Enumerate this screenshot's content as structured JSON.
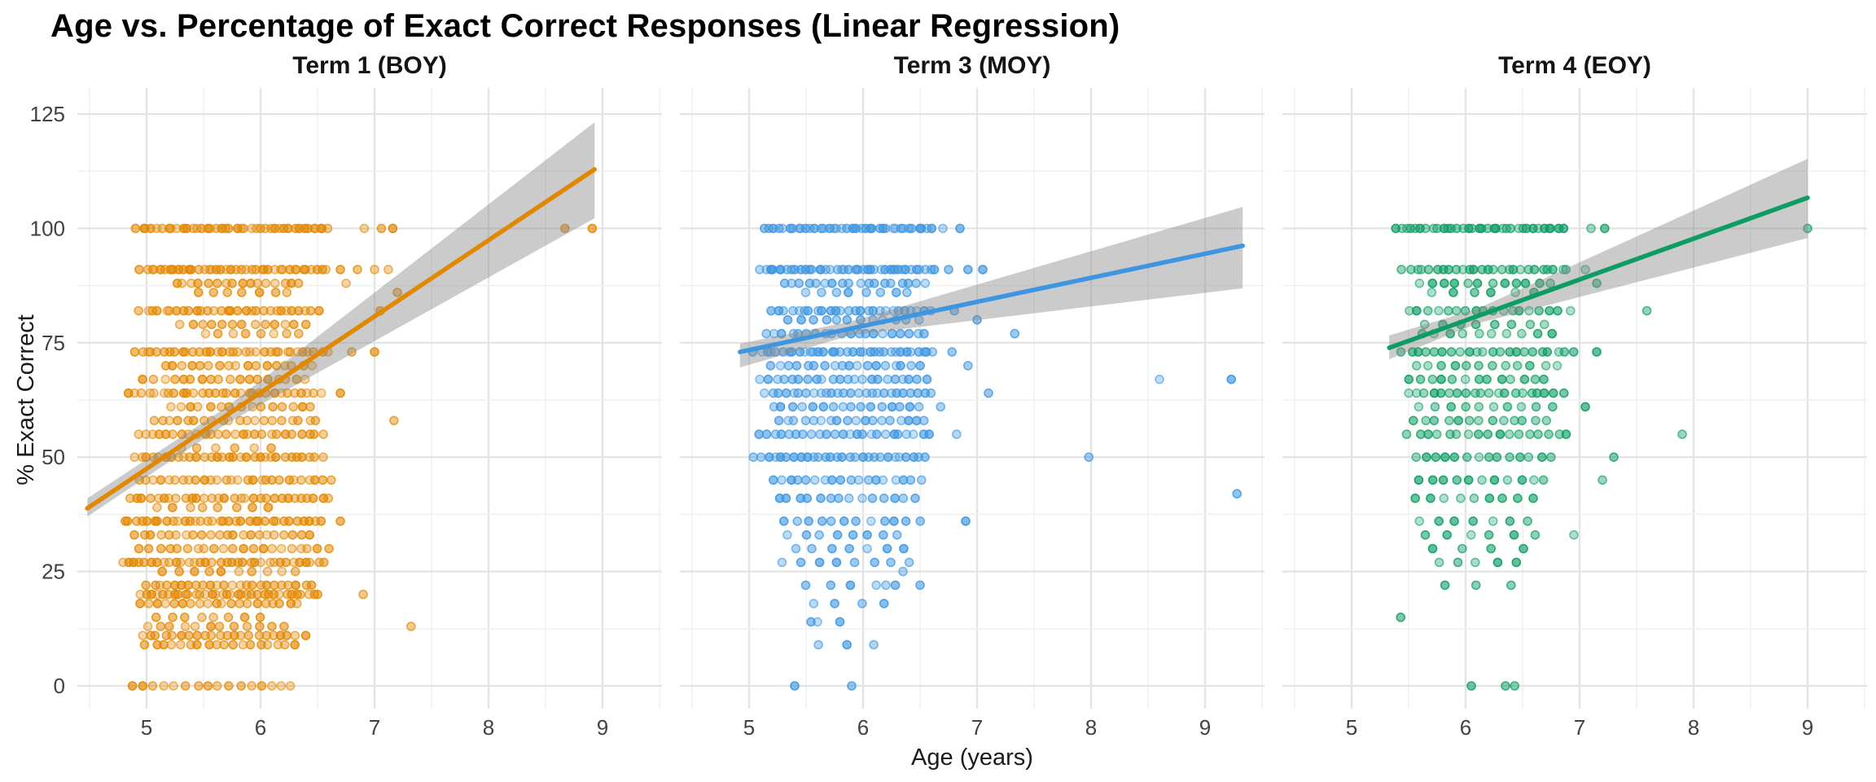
{
  "title": "Age vs. Percentage of Exact Correct Responses (Linear Regression)",
  "axes": {
    "x_label": "Age (years)",
    "y_label": "% Exact Correct",
    "x_ticks": [
      5,
      6,
      7,
      8,
      9
    ],
    "y_ticks": [
      0,
      25,
      50,
      75,
      100,
      125
    ],
    "x_domain": [
      4.39,
      9.52
    ],
    "y_domain": [
      -5,
      130.7
    ],
    "x_minor_step": 0.5,
    "y_minor_step": 12.5,
    "grid": "on"
  },
  "colors": {
    "background": "#ffffff",
    "grid_major": "#e3e3e3",
    "grid_minor": "#f0f0f0",
    "ci_band": "rgba(140,140,140,0.45)",
    "title_text": "#000000",
    "strip_text": "#141414",
    "tick_text": "#424242",
    "facet_accents": [
      "#e28700",
      "#3e96e0",
      "#0d9c63"
    ]
  },
  "chart_data": {
    "type": "scatter",
    "title": "Age vs. Percentage of Exact Correct Responses (Linear Regression)",
    "xlabel": "Age (years)",
    "ylabel": "% Exact Correct",
    "xlim": [
      4.39,
      9.52
    ],
    "ylim": [
      -5,
      130.7
    ],
    "legend": "none",
    "facets": [
      {
        "label": "Term 1 (BOY)",
        "color": "#e28700",
        "regression_line": {
          "x": [
            4.48,
            8.93
          ],
          "y": [
            38.8,
            112.9
          ]
        },
        "ci_band": [
          [
            4.48,
            37.0,
            41.0
          ],
          [
            5.7,
            57.3,
            60.9
          ],
          [
            8.93,
            102.2,
            123.2
          ]
        ],
        "point_bands": [
          [
            100,
            4.92,
            6.6,
            40
          ],
          [
            91,
            4.95,
            6.58,
            40
          ],
          [
            88,
            5.25,
            6.35,
            16
          ],
          [
            86,
            5.45,
            6.25,
            7
          ],
          [
            82,
            4.95,
            6.5,
            30
          ],
          [
            79,
            5.3,
            6.4,
            13
          ],
          [
            77,
            5.5,
            6.35,
            8
          ],
          [
            73,
            4.9,
            6.58,
            34
          ],
          [
            70,
            5.15,
            6.45,
            17
          ],
          [
            67,
            4.98,
            6.4,
            18
          ],
          [
            64,
            4.85,
            6.52,
            30
          ],
          [
            61,
            5.2,
            6.45,
            15
          ],
          [
            58,
            5.05,
            6.5,
            20
          ],
          [
            55,
            4.92,
            6.55,
            26
          ],
          [
            52,
            5.3,
            6.1,
            6
          ],
          [
            50,
            4.9,
            6.48,
            30
          ],
          [
            45,
            4.95,
            6.55,
            27
          ],
          [
            41,
            4.85,
            6.6,
            30
          ],
          [
            39,
            5.1,
            6.05,
            8
          ],
          [
            36,
            4.8,
            6.52,
            34
          ],
          [
            33,
            4.9,
            6.42,
            22
          ],
          [
            30,
            4.95,
            6.5,
            20
          ],
          [
            27,
            4.78,
            6.55,
            34
          ],
          [
            25,
            5.15,
            6.32,
            10
          ],
          [
            22,
            5.0,
            6.45,
            24
          ],
          [
            20,
            4.95,
            6.5,
            34
          ],
          [
            18,
            4.95,
            6.32,
            20
          ],
          [
            15,
            5.1,
            5.98,
            8
          ],
          [
            13,
            5.0,
            6.2,
            12
          ],
          [
            11,
            4.95,
            6.38,
            22
          ],
          [
            9,
            5.0,
            6.3,
            18
          ],
          [
            0,
            4.88,
            6.28,
            16
          ]
        ],
        "extra_points": [
          [
            6.91,
            100
          ],
          [
            7.06,
            100
          ],
          [
            7.16,
            100
          ],
          [
            8.67,
            100
          ],
          [
            8.91,
            100
          ],
          [
            6.7,
            91
          ],
          [
            6.85,
            91
          ],
          [
            7.0,
            91
          ],
          [
            7.12,
            91
          ],
          [
            6.75,
            88
          ],
          [
            7.05,
            82
          ],
          [
            6.8,
            73
          ],
          [
            7.0,
            73
          ],
          [
            7.2,
            86
          ],
          [
            6.7,
            64
          ],
          [
            7.17,
            58
          ],
          [
            6.62,
            45
          ],
          [
            6.7,
            36
          ],
          [
            6.9,
            20
          ],
          [
            7.32,
            13
          ],
          [
            6.55,
            50
          ],
          [
            6.6,
            30
          ]
        ]
      },
      {
        "label": "Term 3 (MOY)",
        "color": "#3e96e0",
        "regression_line": {
          "x": [
            4.92,
            9.33
          ],
          "y": [
            73.0,
            96.2
          ]
        },
        "ci_band": [
          [
            4.92,
            69.6,
            74.8
          ],
          [
            5.9,
            76.7,
            79.7
          ],
          [
            9.33,
            86.9,
            104.7
          ]
        ],
        "point_bands": [
          [
            100,
            5.15,
            6.6,
            38
          ],
          [
            91,
            5.1,
            6.62,
            40
          ],
          [
            88,
            5.3,
            6.55,
            18
          ],
          [
            86,
            5.5,
            6.4,
            8
          ],
          [
            82,
            5.2,
            6.6,
            26
          ],
          [
            80,
            5.35,
            6.5,
            12
          ],
          [
            77,
            5.15,
            6.55,
            20
          ],
          [
            73,
            5.05,
            6.62,
            34
          ],
          [
            70,
            5.2,
            6.5,
            18
          ],
          [
            67,
            5.1,
            6.55,
            22
          ],
          [
            64,
            5.15,
            6.6,
            26
          ],
          [
            61,
            5.2,
            6.5,
            16
          ],
          [
            58,
            5.25,
            6.55,
            18
          ],
          [
            55,
            5.1,
            6.58,
            24
          ],
          [
            50,
            5.05,
            6.55,
            28
          ],
          [
            45,
            5.2,
            6.5,
            18
          ],
          [
            41,
            5.25,
            6.45,
            14
          ],
          [
            36,
            5.3,
            6.5,
            12
          ],
          [
            33,
            5.35,
            6.3,
            8
          ],
          [
            30,
            5.4,
            6.35,
            7
          ],
          [
            27,
            5.3,
            6.4,
            8
          ],
          [
            22,
            5.5,
            6.3,
            5
          ],
          [
            18,
            5.55,
            6.2,
            4
          ],
          [
            14,
            5.55,
            5.8,
            2
          ],
          [
            9,
            5.6,
            6.1,
            3
          ]
        ],
        "extra_points": [
          [
            6.7,
            100
          ],
          [
            6.85,
            100
          ],
          [
            6.75,
            91
          ],
          [
            6.92,
            91
          ],
          [
            7.05,
            91
          ],
          [
            6.8,
            82
          ],
          [
            7.0,
            80
          ],
          [
            7.33,
            77
          ],
          [
            6.78,
            73
          ],
          [
            6.92,
            70
          ],
          [
            7.1,
            64
          ],
          [
            6.68,
            61
          ],
          [
            6.82,
            55
          ],
          [
            7.98,
            50
          ],
          [
            8.6,
            67
          ],
          [
            9.23,
            67
          ],
          [
            9.28,
            42
          ],
          [
            6.9,
            36
          ],
          [
            6.35,
            25
          ],
          [
            6.2,
            22
          ],
          [
            6.5,
            22
          ],
          [
            5.6,
            14
          ],
          [
            5.4,
            0
          ],
          [
            5.9,
            0
          ]
        ]
      },
      {
        "label": "Term 4 (EOY)",
        "color": "#0d9c63",
        "regression_line": {
          "x": [
            5.33,
            9.0
          ],
          "y": [
            73.9,
            106.7
          ]
        },
        "ci_band": [
          [
            5.33,
            71.4,
            76.6
          ],
          [
            6.1,
            79.2,
            82.4
          ],
          [
            9.0,
            97.9,
            115.2
          ]
        ],
        "point_bands": [
          [
            100,
            5.4,
            6.85,
            34
          ],
          [
            91,
            5.45,
            6.9,
            26
          ],
          [
            88,
            5.6,
            6.75,
            12
          ],
          [
            86,
            5.7,
            6.6,
            6
          ],
          [
            82,
            5.5,
            6.9,
            18
          ],
          [
            79,
            5.65,
            6.7,
            8
          ],
          [
            77,
            5.6,
            6.75,
            10
          ],
          [
            73,
            5.45,
            6.95,
            22
          ],
          [
            70,
            5.55,
            6.8,
            12
          ],
          [
            67,
            5.5,
            6.7,
            13
          ],
          [
            64,
            5.5,
            6.85,
            20
          ],
          [
            61,
            5.6,
            6.75,
            10
          ],
          [
            58,
            5.55,
            6.7,
            13
          ],
          [
            55,
            5.5,
            6.9,
            17
          ],
          [
            50,
            5.55,
            6.75,
            14
          ],
          [
            45,
            5.6,
            6.7,
            11
          ],
          [
            41,
            5.55,
            6.6,
            9
          ],
          [
            36,
            5.6,
            6.55,
            7
          ],
          [
            33,
            5.65,
            6.6,
            6
          ],
          [
            30,
            5.7,
            6.5,
            4
          ],
          [
            27,
            5.75,
            6.45,
            5
          ],
          [
            22,
            5.8,
            6.4,
            3
          ]
        ],
        "extra_points": [
          [
            7.1,
            100
          ],
          [
            7.22,
            100
          ],
          [
            9.0,
            100
          ],
          [
            7.05,
            91
          ],
          [
            7.15,
            88
          ],
          [
            7.59,
            82
          ],
          [
            7.15,
            73
          ],
          [
            7.3,
            50
          ],
          [
            7.2,
            45
          ],
          [
            7.9,
            55
          ],
          [
            6.95,
            33
          ],
          [
            7.05,
            61
          ],
          [
            5.43,
            15
          ],
          [
            6.05,
            0
          ],
          [
            6.35,
            0
          ],
          [
            6.43,
            0
          ]
        ]
      }
    ]
  }
}
